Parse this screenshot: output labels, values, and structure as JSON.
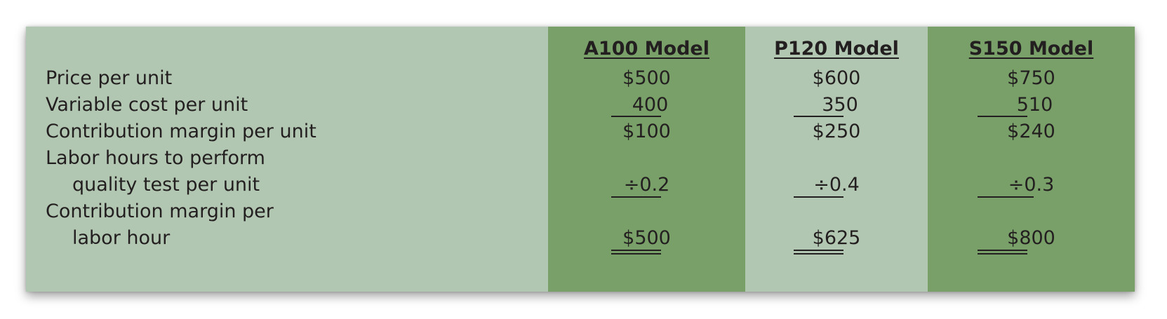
{
  "table": {
    "headers": [
      "A100 Model",
      "P120 Model",
      "S150 Model"
    ],
    "rows": [
      {
        "label": "Price per unit",
        "values": [
          "$500",
          "$600",
          "$750"
        ]
      },
      {
        "label": "Variable cost per unit",
        "values": [
          "400",
          "350",
          "510"
        ]
      },
      {
        "label": "Contribution margin per unit",
        "values": [
          "$100",
          "$250",
          "$240"
        ]
      },
      {
        "label": "Labor hours to perform",
        "label2": "quality test per unit",
        "values": [
          "÷0.2",
          "÷0.4",
          "÷0.3"
        ]
      },
      {
        "label": "Contribution margin per",
        "label2": "labor hour",
        "values": [
          "$500",
          "$625",
          "$800"
        ]
      }
    ]
  },
  "colors": {
    "panel_background": "#b2c7b1",
    "highlight_column": "#79a068",
    "text": "#231f20"
  }
}
